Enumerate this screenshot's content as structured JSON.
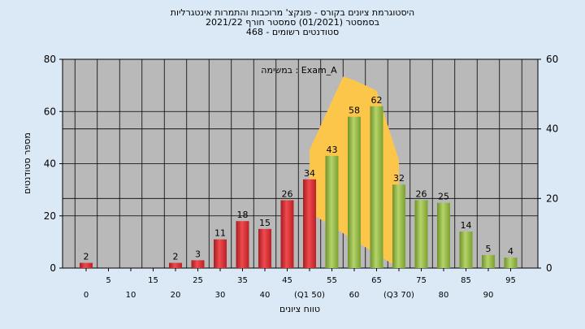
{
  "title_lines": [
    "היסטוגרמת ציונים בקורס - פונקצ' מרוכבות והתמרות אינטגרליות",
    "בסמסטר  (01/2021)  סמסטר חורף  2021/22",
    "סטודנטים רשומים - 468"
  ],
  "chart_data": {
    "type": "bar",
    "annotation": "במשימה : Exam_A",
    "xlabel": "טווח ציונים",
    "ylabel": "מספר סטודנטים",
    "ylim": [
      0,
      80
    ],
    "y_ticks": [
      0,
      20,
      40,
      60,
      80
    ],
    "y2lim": [
      0,
      60
    ],
    "y2_ticks": [
      0,
      20,
      40,
      60
    ],
    "categories": [
      "0",
      "5",
      "10",
      "15",
      "20",
      "25",
      "30",
      "35",
      "40",
      "45",
      "50",
      "55",
      "60",
      "65",
      "70",
      "75",
      "80",
      "85",
      "90",
      "95"
    ],
    "category_labels": [
      "0",
      "5",
      "10",
      "15",
      "20",
      "25",
      "30",
      "35",
      "40",
      "45",
      "(Q1 50)",
      "55",
      "60",
      "65",
      "(Q3 70)",
      "75",
      "80",
      "85",
      "90",
      "95"
    ],
    "values": [
      2,
      0,
      0,
      0,
      2,
      3,
      11,
      18,
      15,
      26,
      34,
      43,
      58,
      62,
      32,
      26,
      25,
      14,
      5,
      4
    ],
    "bar_colors": [
      "red",
      "red",
      "red",
      "red",
      "red",
      "red",
      "red",
      "red",
      "red",
      "red",
      "red",
      "green",
      "green",
      "green",
      "green",
      "green",
      "green",
      "green",
      "green",
      "green"
    ],
    "density_curve_y2": [
      {
        "x": 50,
        "y": 16
      },
      {
        "x": 50,
        "y": 34
      },
      {
        "x": 52.5,
        "y": 41
      },
      {
        "x": 55,
        "y": 48
      },
      {
        "x": 57.5,
        "y": 55
      },
      {
        "x": 60,
        "y": 54
      },
      {
        "x": 65,
        "y": 51
      },
      {
        "x": 70,
        "y": 31
      },
      {
        "x": 70,
        "y": 0
      }
    ],
    "colors": {
      "red_bar": "#e8383c",
      "green_bar": "#9cc14a",
      "density_fill": "#fcc64a",
      "plot_bg": "#b9b9b9"
    }
  }
}
